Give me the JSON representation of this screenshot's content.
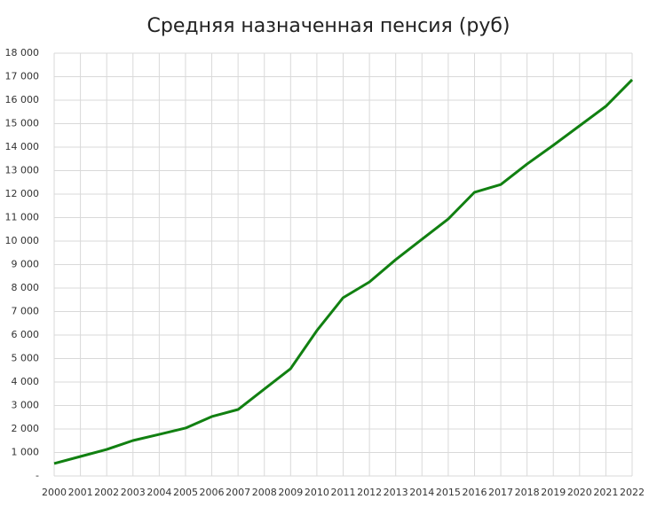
{
  "chart_data": {
    "type": "line",
    "title": "Средняя назначенная пенсия (руб)",
    "categories": [
      "2000",
      "2001",
      "2002",
      "2003",
      "2004",
      "2005",
      "2006",
      "2007",
      "2008",
      "2009",
      "2010",
      "2011",
      "2012",
      "2013",
      "2014",
      "2015",
      "2016",
      "2017",
      "2018",
      "2019",
      "2020",
      "2021",
      "2022"
    ],
    "series": [
      {
        "name": "Средняя назначенная пенсия",
        "color": "#118011",
        "values": [
          530,
          830,
          1130,
          1510,
          1770,
          2040,
          2530,
          2830,
          3700,
          4570,
          6190,
          7590,
          8260,
          9210,
          10080,
          10940,
          12080,
          12410,
          13280,
          14080,
          14910,
          15740,
          16870
        ]
      }
    ],
    "ylim": [
      0,
      18000
    ],
    "yticks": [
      {
        "value": 0,
        "label": "-"
      },
      {
        "value": 1000,
        "label": "1 000"
      },
      {
        "value": 2000,
        "label": "2 000"
      },
      {
        "value": 3000,
        "label": "3 000"
      },
      {
        "value": 4000,
        "label": "4 000"
      },
      {
        "value": 5000,
        "label": "5 000"
      },
      {
        "value": 6000,
        "label": "6 000"
      },
      {
        "value": 7000,
        "label": "7 000"
      },
      {
        "value": 8000,
        "label": "8 000"
      },
      {
        "value": 9000,
        "label": "9 000"
      },
      {
        "value": 10000,
        "label": "10 000"
      },
      {
        "value": 11000,
        "label": "11 000"
      },
      {
        "value": 12000,
        "label": "12 000"
      },
      {
        "value": 13000,
        "label": "13 000"
      },
      {
        "value": 14000,
        "label": "14 000"
      },
      {
        "value": 15000,
        "label": "15 000"
      },
      {
        "value": 16000,
        "label": "16 000"
      },
      {
        "value": 17000,
        "label": "17 000"
      },
      {
        "value": 18000,
        "label": "18 000"
      }
    ],
    "grid": true
  }
}
